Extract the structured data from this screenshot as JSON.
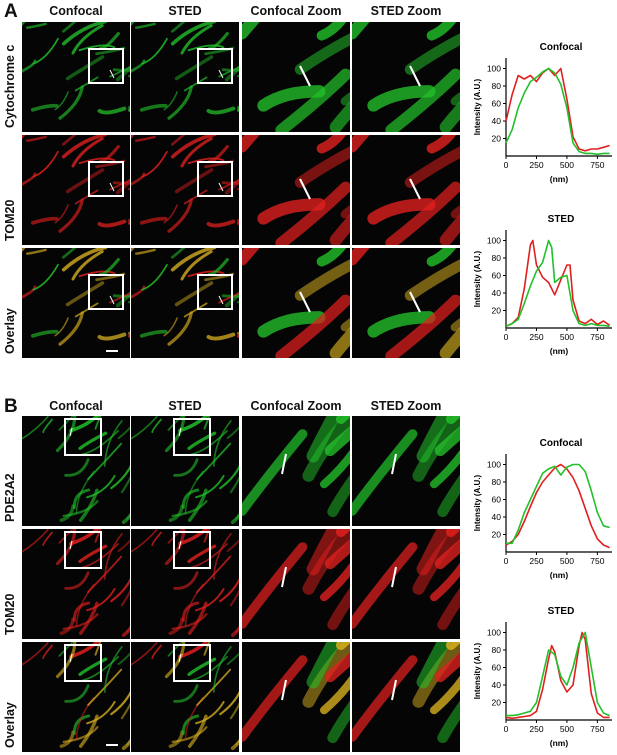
{
  "figure": {
    "panels": [
      {
        "letter": "A",
        "columns": [
          "Confocal",
          "STED",
          "Confocal Zoom",
          "STED Zoom"
        ],
        "rows": [
          {
            "label": "Cytochrome c",
            "channel": "green"
          },
          {
            "label": "TOM20",
            "channel": "red"
          },
          {
            "label": "Overlay",
            "channel": "overlay"
          }
        ]
      },
      {
        "letter": "B",
        "columns": [
          "Confocal",
          "STED",
          "Confocal Zoom",
          "STED Zoom"
        ],
        "rows": [
          {
            "label": "PDE2A2",
            "channel": "green"
          },
          {
            "label": "TOM20",
            "channel": "red"
          },
          {
            "label": "Overlay",
            "channel": "overlay"
          }
        ]
      }
    ],
    "colors": {
      "green": "#22c02a",
      "red": "#e0201e",
      "background": "#050505",
      "overlay": "#d8b020"
    }
  },
  "chart_data": [
    {
      "type": "line",
      "title": "Confocal",
      "xlabel": "(nm)",
      "ylabel": "Intensity (A.U.)",
      "xlim": [
        0,
        870
      ],
      "ylim": [
        0,
        112
      ],
      "xticks": [
        0,
        250,
        500,
        750
      ],
      "yticks": [
        20,
        40,
        60,
        80,
        100
      ],
      "series": [
        {
          "color": "#e0201e",
          "x": [
            0,
            50,
            100,
            150,
            200,
            250,
            300,
            350,
            400,
            450,
            500,
            550,
            600,
            650,
            700,
            750,
            800,
            850
          ],
          "y": [
            40,
            70,
            92,
            88,
            92,
            85,
            95,
            100,
            92,
            100,
            65,
            22,
            8,
            6,
            8,
            8,
            10,
            12
          ]
        },
        {
          "color": "#22c02a",
          "x": [
            0,
            50,
            100,
            150,
            200,
            250,
            300,
            350,
            400,
            450,
            500,
            550,
            600,
            650,
            700,
            750,
            800,
            850
          ],
          "y": [
            15,
            30,
            55,
            72,
            85,
            90,
            96,
            100,
            95,
            82,
            55,
            15,
            5,
            3,
            3,
            2,
            3,
            3
          ]
        }
      ]
    },
    {
      "type": "line",
      "title": "STED",
      "xlabel": "(nm)",
      "ylabel": "Intensity (A.U.)",
      "xlim": [
        0,
        870
      ],
      "ylim": [
        0,
        112
      ],
      "xticks": [
        0,
        250,
        500,
        750
      ],
      "yticks": [
        20,
        40,
        60,
        80,
        100
      ],
      "series": [
        {
          "color": "#e0201e",
          "x": [
            0,
            50,
            100,
            150,
            200,
            220,
            250,
            300,
            350,
            400,
            450,
            500,
            525,
            550,
            600,
            650,
            700,
            750,
            800,
            850
          ],
          "y": [
            2,
            5,
            12,
            45,
            95,
            100,
            72,
            58,
            52,
            38,
            55,
            72,
            72,
            32,
            8,
            5,
            10,
            4,
            8,
            3
          ]
        },
        {
          "color": "#22c02a",
          "x": [
            0,
            50,
            100,
            150,
            200,
            250,
            300,
            350,
            375,
            400,
            450,
            500,
            550,
            600,
            650,
            700,
            750,
            800,
            850
          ],
          "y": [
            2,
            5,
            10,
            28,
            48,
            65,
            75,
            100,
            92,
            52,
            58,
            60,
            20,
            5,
            3,
            5,
            3,
            3,
            2
          ]
        }
      ]
    },
    {
      "type": "line",
      "title": "Confocal",
      "xlabel": "(nm)",
      "ylabel": "Intensity (A.U.)",
      "xlim": [
        0,
        870
      ],
      "ylim": [
        0,
        112
      ],
      "xticks": [
        0,
        250,
        500,
        750
      ],
      "yticks": [
        20,
        40,
        60,
        80,
        100
      ],
      "series": [
        {
          "color": "#e0201e",
          "x": [
            0,
            50,
            100,
            150,
            200,
            250,
            300,
            350,
            400,
            450,
            500,
            550,
            600,
            650,
            700,
            750,
            800,
            850
          ],
          "y": [
            8,
            12,
            20,
            35,
            52,
            68,
            80,
            88,
            96,
            100,
            95,
            85,
            70,
            50,
            30,
            15,
            8,
            5
          ]
        },
        {
          "color": "#22c02a",
          "x": [
            0,
            50,
            100,
            150,
            200,
            250,
            300,
            350,
            400,
            450,
            500,
            550,
            600,
            650,
            700,
            750,
            800,
            850
          ],
          "y": [
            10,
            10,
            25,
            45,
            60,
            75,
            90,
            95,
            98,
            88,
            97,
            100,
            100,
            92,
            70,
            45,
            30,
            28
          ]
        }
      ]
    },
    {
      "type": "line",
      "title": "STED",
      "xlabel": "(nm)",
      "ylabel": "Intensity (A.U.)",
      "xlim": [
        0,
        870
      ],
      "ylim": [
        0,
        112
      ],
      "xticks": [
        0,
        250,
        500,
        750
      ],
      "yticks": [
        20,
        40,
        60,
        80,
        100
      ],
      "series": [
        {
          "color": "#e0201e",
          "x": [
            0,
            50,
            100,
            150,
            200,
            250,
            300,
            350,
            375,
            400,
            450,
            500,
            550,
            600,
            625,
            650,
            700,
            750,
            800,
            850
          ],
          "y": [
            3,
            2,
            3,
            4,
            5,
            10,
            35,
            70,
            85,
            78,
            45,
            32,
            40,
            85,
            100,
            92,
            30,
            8,
            3,
            3
          ]
        },
        {
          "color": "#22c02a",
          "x": [
            0,
            50,
            100,
            150,
            200,
            250,
            300,
            350,
            400,
            450,
            500,
            550,
            600,
            650,
            700,
            750,
            800,
            850
          ],
          "y": [
            5,
            5,
            6,
            8,
            10,
            20,
            50,
            80,
            75,
            50,
            40,
            60,
            88,
            100,
            60,
            20,
            8,
            5
          ]
        }
      ]
    }
  ]
}
